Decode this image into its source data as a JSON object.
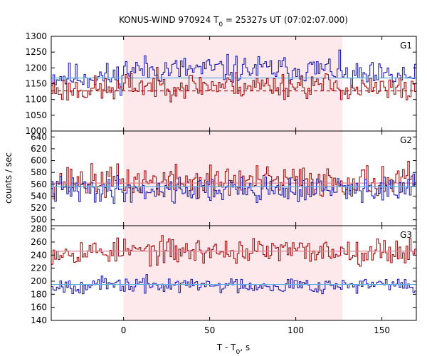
{
  "chart_data": {
    "type": "line",
    "title": {
      "main": "KONUS-WIND 970924 T",
      "sub": "0",
      "rest": " = 25327s UT (07:02:07.000)"
    },
    "xlabel": {
      "main": "T - T",
      "sub": "0",
      "rest": ", s"
    },
    "ylabel": "counts / sec",
    "xlim": [
      -42,
      170
    ],
    "xticks": [
      "0",
      "50",
      "100",
      "150"
    ],
    "highlight_interval": [
      0,
      127
    ],
    "colors": {
      "highlight": "#fde8ec",
      "series_a": "#2020b0",
      "series_b": "#a01010",
      "bg_a": "#5fb0e6",
      "bg_b": "#e08090"
    },
    "panels": [
      {
        "label": "G1",
        "ylim": [
          1000,
          1300
        ],
        "yticks": [
          "1000",
          "1050",
          "1100",
          "1150",
          "1200",
          "1250",
          "1300"
        ],
        "series": [
          {
            "color_key": "series_a",
            "mean": 1172,
            "spread": 36,
            "seed": 11,
            "background": {
              "style": "solid",
              "color_key": "bg_a",
              "value": 1168
            },
            "segment_levels": [
              {
                "from": 0,
                "to": 127,
                "value": 1195
              }
            ]
          },
          {
            "color_key": "series_b",
            "mean": 1132,
            "spread": 34,
            "seed": 23,
            "background": {
              "style": "dashed",
              "color_key": "series_b",
              "value": 1127
            },
            "segment_levels": [
              {
                "from": 0,
                "to": 127,
                "value": 1145
              }
            ]
          }
        ]
      },
      {
        "label": "G2",
        "ylim": [
          490,
          650
        ],
        "yticks": [
          "500",
          "520",
          "540",
          "560",
          "580",
          "600",
          "620",
          "640"
        ],
        "series": [
          {
            "color_key": "series_b",
            "mean": 565,
            "spread": 22,
            "seed": 37,
            "background": {
              "style": "solid",
              "color_key": "bg_b",
              "value": 562
            },
            "segment_levels": []
          },
          {
            "color_key": "series_a",
            "mean": 551,
            "spread": 18,
            "seed": 41,
            "background": {
              "style": "solid",
              "color_key": "bg_a",
              "value": 556
            },
            "segment_levels": []
          }
        ]
      },
      {
        "label": "G3",
        "ylim": [
          140,
          285
        ],
        "yticks": [
          "140",
          "160",
          "180",
          "200",
          "220",
          "240",
          "260",
          "280"
        ],
        "series": [
          {
            "color_key": "series_b",
            "mean": 246,
            "spread": 16,
            "seed": 53,
            "background": {
              "style": "solid",
              "color_key": "bg_b",
              "value": 246
            },
            "segment_levels": []
          },
          {
            "color_key": "series_a",
            "mean": 194,
            "spread": 10,
            "seed": 67,
            "background": {
              "style": "solid",
              "color_key": "bg_a",
              "value": 195
            },
            "segment_levels": []
          }
        ]
      }
    ]
  }
}
